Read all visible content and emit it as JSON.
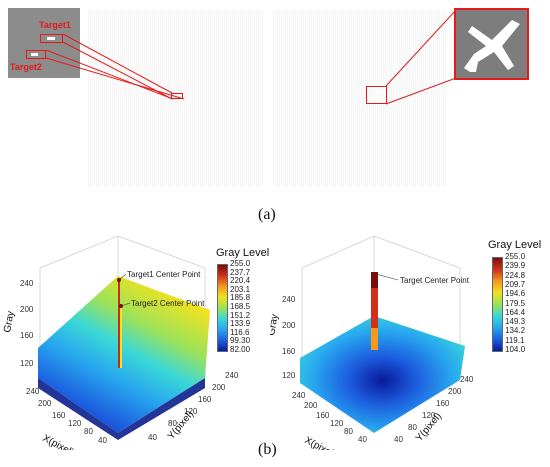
{
  "panel_a": {
    "caption": "(a)",
    "target1_label": "Target1",
    "target2_label": "Target2"
  },
  "panel_b": {
    "caption": "(b)",
    "left": {
      "colorbar_title": "Gray Level",
      "colorbar_ticks": [
        "255.0",
        "237.7",
        "220.4",
        "203.1",
        "185.8",
        "168.5",
        "151.2",
        "133.9",
        "116.6",
        "99.30",
        "82.00"
      ],
      "annotation1": "Target1 Center Point",
      "annotation2": "Target2 Center Point",
      "zlabel": "Gray",
      "xlabel": "X(pixel)",
      "ylabel": "Y(pixel)",
      "z_ticks": [
        "240",
        "200",
        "160",
        "120"
      ],
      "x_ticks": [
        "240",
        "200",
        "160",
        "120",
        "80",
        "40"
      ],
      "y_ticks": [
        "240",
        "200",
        "160",
        "120",
        "80",
        "40"
      ]
    },
    "right": {
      "colorbar_title": "Gray Level",
      "colorbar_ticks": [
        "255.0",
        "239.9",
        "224.8",
        "209.7",
        "194.6",
        "179.5",
        "164.4",
        "149.3",
        "134.2",
        "119.1",
        "104.0"
      ],
      "annotation1": "Target Center Point",
      "zlabel": "Gray",
      "xlabel": "X(pixel)",
      "ylabel": "Y(pixel)",
      "z_ticks": [
        "240",
        "200",
        "160",
        "120"
      ],
      "x_ticks": [
        "240",
        "200",
        "160",
        "120",
        "80",
        "40"
      ],
      "y_ticks": [
        "240",
        "200",
        "160",
        "120",
        "80",
        "40"
      ]
    }
  },
  "colors": {
    "accent_red": "#e31b1b",
    "colormap": [
      "#0a1a9c",
      "#1d5fe0",
      "#27a6ef",
      "#3ad8d6",
      "#9be25a",
      "#f0e21f",
      "#f59a1e",
      "#d0301a",
      "#7a0d0d"
    ]
  }
}
